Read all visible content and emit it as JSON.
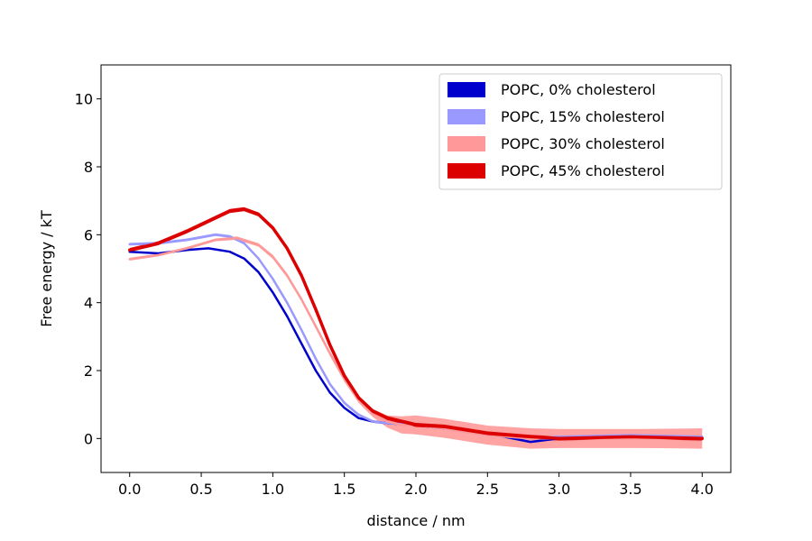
{
  "chart_data": {
    "type": "line",
    "title": "",
    "xlabel": "distance / nm",
    "ylabel": "Free energy / kT",
    "xlim": [
      -0.2,
      4.2
    ],
    "ylim": [
      -1,
      11
    ],
    "xticks": [
      "0.0",
      "0.5",
      "1.0",
      "1.5",
      "2.0",
      "2.5",
      "3.0",
      "3.5",
      "4.0"
    ],
    "yticks": [
      "0",
      "2",
      "4",
      "6",
      "8",
      "10"
    ],
    "grid": false,
    "legend_position": "top-right",
    "series": [
      {
        "name": "POPC, 0% cholesterol",
        "color": "#0000cc",
        "x": [
          0.0,
          0.2,
          0.4,
          0.55,
          0.7,
          0.8,
          0.9,
          1.0,
          1.1,
          1.2,
          1.3,
          1.4,
          1.5,
          1.6,
          1.7,
          1.8,
          2.0,
          2.2,
          2.5,
          2.8,
          3.0,
          3.5,
          4.0
        ],
        "y": [
          5.5,
          5.45,
          5.55,
          5.6,
          5.5,
          5.3,
          4.9,
          4.3,
          3.6,
          2.8,
          2.0,
          1.35,
          0.9,
          0.6,
          0.5,
          0.45,
          0.4,
          0.3,
          0.15,
          -0.1,
          0.0,
          0.05,
          0.0
        ],
        "band": [
          0.02,
          0.02,
          0.02,
          0.02,
          0.02,
          0.02,
          0.02,
          0.02,
          0.02,
          0.02,
          0.02,
          0.02,
          0.02,
          0.02,
          0.02,
          0.02,
          0.02,
          0.02,
          0.02,
          0.02,
          0.02,
          0.02,
          0.02
        ]
      },
      {
        "name": "POPC, 15% cholesterol",
        "color": "#9999ff",
        "x": [
          0.0,
          0.2,
          0.4,
          0.6,
          0.7,
          0.8,
          0.9,
          1.0,
          1.1,
          1.2,
          1.3,
          1.4,
          1.5,
          1.6,
          1.7,
          1.8,
          2.0,
          2.2,
          2.5,
          2.8,
          3.0,
          3.5,
          4.0
        ],
        "y": [
          5.72,
          5.75,
          5.85,
          6.0,
          5.95,
          5.75,
          5.3,
          4.7,
          4.0,
          3.2,
          2.35,
          1.6,
          1.05,
          0.7,
          0.5,
          0.45,
          0.4,
          0.3,
          0.1,
          0.0,
          0.05,
          0.1,
          0.05
        ],
        "band": [
          0.04,
          0.04,
          0.04,
          0.04,
          0.04,
          0.04,
          0.04,
          0.04,
          0.04,
          0.04,
          0.04,
          0.04,
          0.04,
          0.04,
          0.04,
          0.04,
          0.04,
          0.04,
          0.04,
          0.04,
          0.04,
          0.04,
          0.04
        ]
      },
      {
        "name": "POPC, 30% cholesterol",
        "color": "#ff9999",
        "x": [
          0.0,
          0.2,
          0.4,
          0.6,
          0.75,
          0.9,
          1.0,
          1.1,
          1.2,
          1.3,
          1.4,
          1.5,
          1.6,
          1.7,
          1.8,
          1.9,
          2.0,
          2.2,
          2.5,
          2.8,
          3.0,
          3.3,
          3.6,
          4.0
        ],
        "y": [
          5.28,
          5.4,
          5.6,
          5.85,
          5.9,
          5.7,
          5.35,
          4.8,
          4.1,
          3.3,
          2.5,
          1.75,
          1.15,
          0.75,
          0.5,
          0.4,
          0.4,
          0.3,
          0.1,
          0.0,
          0.0,
          0.0,
          0.0,
          0.0
        ],
        "band": [
          0.04,
          0.04,
          0.04,
          0.04,
          0.05,
          0.05,
          0.06,
          0.06,
          0.06,
          0.06,
          0.07,
          0.08,
          0.1,
          0.12,
          0.18,
          0.25,
          0.28,
          0.28,
          0.28,
          0.3,
          0.28,
          0.28,
          0.28,
          0.3
        ]
      },
      {
        "name": "POPC, 45% cholesterol",
        "color": "#dd0000",
        "x": [
          0.0,
          0.2,
          0.4,
          0.6,
          0.7,
          0.8,
          0.9,
          1.0,
          1.1,
          1.2,
          1.3,
          1.4,
          1.5,
          1.6,
          1.7,
          1.8,
          2.0,
          2.2,
          2.5,
          2.8,
          3.0,
          3.5,
          4.0
        ],
        "y": [
          5.55,
          5.75,
          6.1,
          6.5,
          6.7,
          6.75,
          6.6,
          6.2,
          5.6,
          4.8,
          3.8,
          2.75,
          1.85,
          1.2,
          0.8,
          0.6,
          0.4,
          0.35,
          0.15,
          0.05,
          0.0,
          0.05,
          0.0
        ],
        "band": [
          0.06,
          0.06,
          0.06,
          0.06,
          0.06,
          0.06,
          0.06,
          0.06,
          0.06,
          0.06,
          0.06,
          0.06,
          0.06,
          0.06,
          0.06,
          0.06,
          0.06,
          0.06,
          0.06,
          0.06,
          0.06,
          0.06,
          0.06
        ]
      }
    ]
  }
}
